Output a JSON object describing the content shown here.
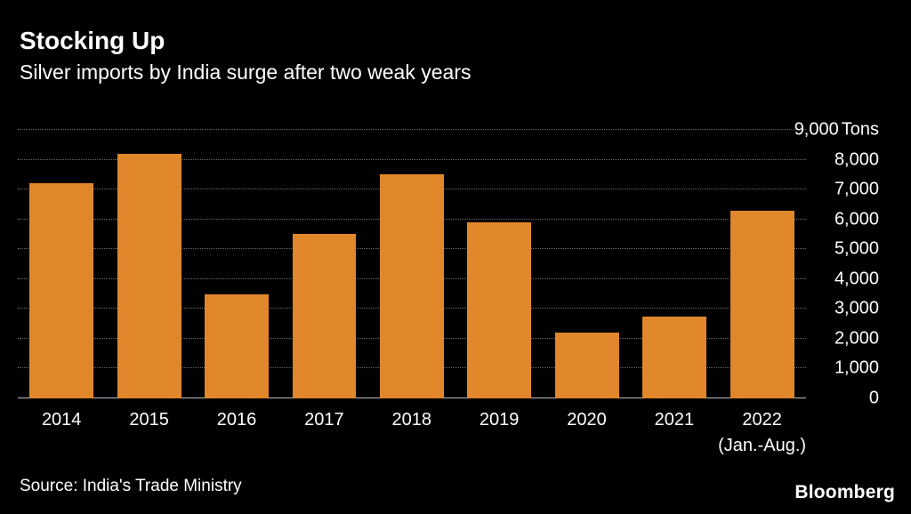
{
  "header": {
    "title": "Stocking Up",
    "subtitle": "Silver imports by India surge after two weak years"
  },
  "chart_data": {
    "type": "bar",
    "title": "Stocking Up",
    "subtitle": "Silver imports by India surge after two weak years",
    "categories": [
      "2014",
      "2015",
      "2016",
      "2017",
      "2018",
      "2019",
      "2020",
      "2021",
      "2022"
    ],
    "x_sub_labels": [
      "",
      "",
      "",
      "",
      "",
      "",
      "",
      "",
      "(Jan.-Aug.)"
    ],
    "values": [
      7200,
      8200,
      3500,
      5500,
      7500,
      5900,
      2200,
      2750,
      6300
    ],
    "unit": "Tons",
    "ylim": [
      0,
      9000
    ],
    "yticks": [
      {
        "value": 0,
        "label": "0"
      },
      {
        "value": 1000,
        "label": "1,000"
      },
      {
        "value": 2000,
        "label": "2,000"
      },
      {
        "value": 3000,
        "label": "3,000"
      },
      {
        "value": 4000,
        "label": "4,000"
      },
      {
        "value": 5000,
        "label": "5,000"
      },
      {
        "value": 6000,
        "label": "6,000"
      },
      {
        "value": 7000,
        "label": "7,000"
      },
      {
        "value": 8000,
        "label": "8,000"
      },
      {
        "value": 9000,
        "label": "9,000",
        "unit": "Tons"
      }
    ],
    "bar_color": "#E1872B",
    "grid": "dotted-horizontal",
    "legend": "none",
    "y_axis_position": "right"
  },
  "footer": {
    "source": "Source: India's Trade Ministry",
    "brand": "Bloomberg"
  }
}
